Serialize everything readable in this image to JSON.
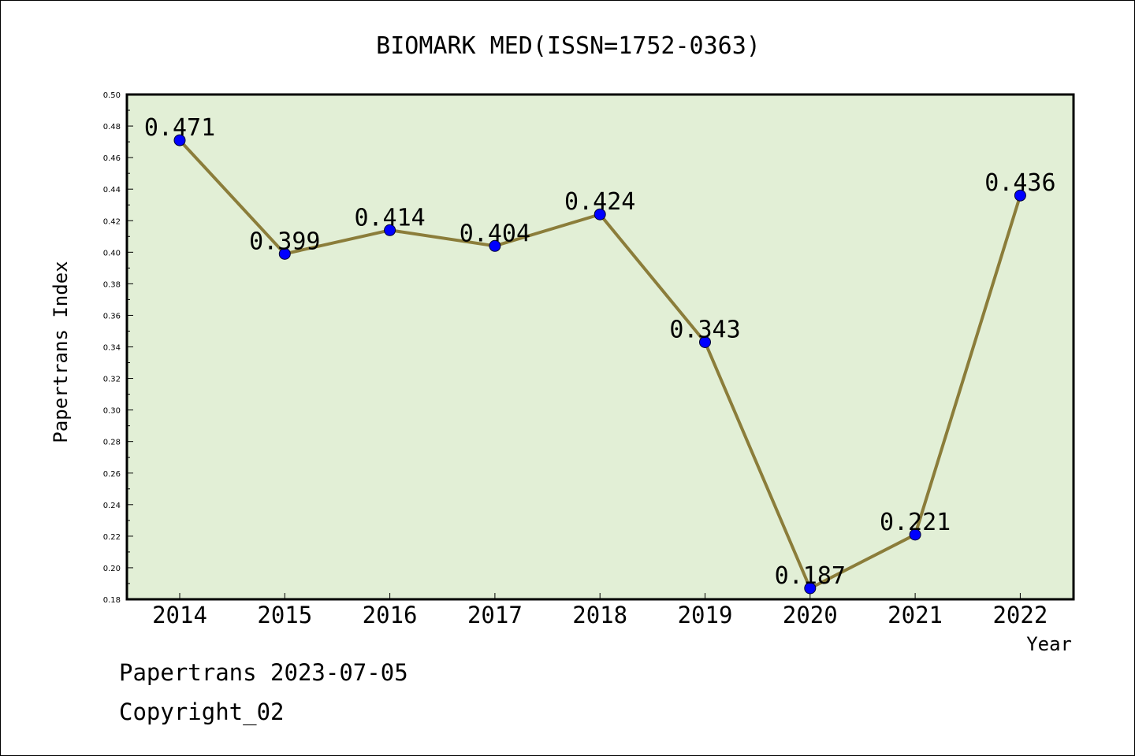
{
  "chart_data": {
    "type": "line",
    "title": "BIOMARK MED(ISSN=1752-0363)",
    "xlabel": "Year",
    "ylabel": "Papertrans Index",
    "categories": [
      "2014",
      "2015",
      "2016",
      "2017",
      "2018",
      "2019",
      "2020",
      "2021",
      "2022"
    ],
    "series": [
      {
        "values": [
          0.471,
          0.399,
          0.414,
          0.404,
          0.424,
          0.343,
          0.187,
          0.221,
          0.436
        ],
        "labels": [
          "0.471",
          "0.399",
          "0.414",
          "0.404",
          "0.424",
          "0.343",
          "0.187",
          "0.221",
          "0.436"
        ],
        "line_color": "#8b7d3a",
        "marker_color": "#0000ff"
      }
    ],
    "ylim": [
      0.18,
      0.5
    ],
    "yticks": [
      "0.18",
      "0.20",
      "0.22",
      "0.24",
      "0.26",
      "0.28",
      "0.30",
      "0.32",
      "0.34",
      "0.36",
      "0.38",
      "0.40",
      "0.42",
      "0.44",
      "0.46",
      "0.48",
      "0.50"
    ],
    "grid": false,
    "plot_background": "#e2efd6"
  },
  "footer": {
    "line1": "Papertrans 2023-07-05",
    "line2": "Copyright_02"
  }
}
